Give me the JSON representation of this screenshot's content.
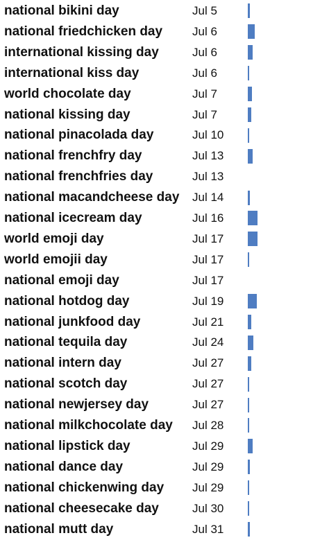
{
  "colors": {
    "bar": "#4f7dc2",
    "text": "#111111",
    "background": "#ffffff"
  },
  "chart_data": {
    "type": "bar",
    "orientation": "horizontal",
    "title": "",
    "xlabel": "",
    "ylabel": "",
    "grid": false,
    "legend": "none",
    "xlim": [
      0,
      15
    ],
    "categories": [
      "national bikini day",
      "national friedchicken day",
      "international kissing day",
      "international kiss day",
      "world chocolate day",
      "national kissing day",
      "national pinacolada day",
      "national frenchfry day",
      "national frenchfries day",
      "national macandcheese day",
      "national icecream day",
      "world emoji day",
      "world emojii day",
      "national emoji day",
      "national hotdog day",
      "national junkfood day",
      "national tequila day",
      "national intern day",
      "national scotch day",
      "national newjersey day",
      "national milkchocolate day",
      "national lipstick day",
      "national dance day",
      "national chickenwing day",
      "national cheesecake day",
      "national mutt day"
    ],
    "dates": [
      "Jul 5",
      "Jul 6",
      "Jul 6",
      "Jul 6",
      "Jul 7",
      "Jul 7",
      "Jul 10",
      "Jul 13",
      "Jul 13",
      "Jul 14",
      "Jul 16",
      "Jul 17",
      "Jul 17",
      "Jul 17",
      "Jul 19",
      "Jul 21",
      "Jul 24",
      "Jul 27",
      "Jul 27",
      "Jul 27",
      "Jul 28",
      "Jul 29",
      "Jul 29",
      "Jul 29",
      "Jul 30",
      "Jul 31"
    ],
    "values": [
      3,
      11,
      8,
      2,
      6,
      5,
      1,
      8,
      0,
      3,
      15,
      15,
      1,
      0,
      14,
      5,
      9,
      5,
      1,
      1,
      1,
      8,
      3,
      1,
      2,
      3
    ]
  }
}
